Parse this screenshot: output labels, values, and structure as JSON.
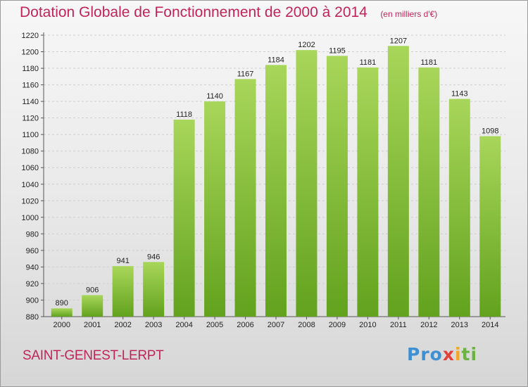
{
  "title": "Dotation Globale de Fonctionnement de 2000 à 2014",
  "subtitle": "(en milliers d'€)",
  "commune": "SAINT-GENEST-LERPT",
  "logo": {
    "p1": "Pro",
    "p2": "x",
    "p3": "i",
    "p4": "ti"
  },
  "colors": {
    "bar_light": "#a8d65a",
    "bar_dark": "#62a21d",
    "title": "#c0255a",
    "grid": "#cfcfcf"
  },
  "chart_data": {
    "type": "bar",
    "categories": [
      "2000",
      "2001",
      "2002",
      "2003",
      "2004",
      "2005",
      "2006",
      "2007",
      "2008",
      "2009",
      "2010",
      "2011",
      "2012",
      "2013",
      "2014"
    ],
    "values": [
      890,
      906,
      941,
      946,
      1118,
      1140,
      1167,
      1184,
      1202,
      1195,
      1181,
      1207,
      1181,
      1143,
      1098
    ],
    "ylim": [
      880,
      1220
    ],
    "yticks": [
      880,
      900,
      920,
      940,
      960,
      980,
      1000,
      1020,
      1040,
      1060,
      1080,
      1100,
      1120,
      1140,
      1160,
      1180,
      1200,
      1220
    ],
    "grid": true,
    "title": "Dotation Globale de Fonctionnement de 2000 à 2014",
    "xlabel": "",
    "ylabel": "(en milliers d'€)"
  }
}
